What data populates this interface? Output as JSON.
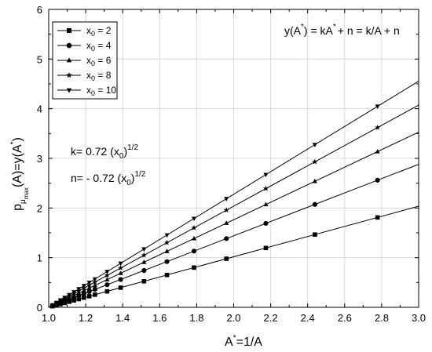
{
  "chart_data": {
    "type": "line",
    "x_axis": {
      "label_main": "A",
      "label_sup": "*",
      "label_rest": "=1/A",
      "range": [
        1.0,
        3.0
      ],
      "ticks": [
        1.0,
        1.2,
        1.4,
        1.6,
        1.8,
        2.0,
        2.2,
        2.4,
        2.6,
        2.8,
        3.0
      ],
      "tick_labels": [
        "1.0",
        "1.2",
        "1.4",
        "1.6",
        "1.8",
        "2.0",
        "2.2",
        "2.4",
        "2.6",
        "2.8",
        "3.0"
      ]
    },
    "y_axis": {
      "label_p": "p",
      "label_mu": "μ",
      "label_max": "max",
      "label_rest": "(A)=y(A",
      "label_star": "*",
      "label_close": ")",
      "range": [
        0,
        6
      ],
      "ticks": [
        0,
        1,
        2,
        3,
        4,
        5,
        6
      ],
      "tick_labels": [
        "0",
        "1",
        "2",
        "3",
        "4",
        "5",
        "6"
      ]
    },
    "grid": true,
    "legend_position": "top-left",
    "equation": {
      "p1": "y(A",
      "s1": "*",
      "p2": ") = kA",
      "s2": "*",
      "p3": "+ n = k/A + n"
    },
    "k_annotation": {
      "text": "k= 0.72 (x",
      "sub": "0",
      "close": ")",
      "sup": "1/2"
    },
    "n_annotation": {
      "text": "n= - 0.72 (x",
      "sub": "0",
      "close": ")",
      "sup": "1/2"
    },
    "marker_x": [
      1.0,
      1.0204,
      1.0417,
      1.0638,
      1.087,
      1.1111,
      1.1364,
      1.1628,
      1.1905,
      1.2195,
      1.25,
      1.3158,
      1.3889,
      1.5152,
      1.6393,
      1.7857,
      1.9608,
      2.1739,
      2.439,
      2.7778,
      3.0
    ],
    "series": [
      {
        "name_prefix": "x",
        "name_sub": "0",
        "name_value": " = 2",
        "marker": "square",
        "slope": 1.01823,
        "intercept": -1.01823
      },
      {
        "name_prefix": "x",
        "name_sub": "0",
        "name_value": " = 4",
        "marker": "circle",
        "slope": 1.44,
        "intercept": -1.44
      },
      {
        "name_prefix": "x",
        "name_sub": "0",
        "name_value": " = 6",
        "marker": "triangle-up",
        "slope": 1.76363,
        "intercept": -1.76363
      },
      {
        "name_prefix": "x",
        "name_sub": "0",
        "name_value": " = 8",
        "marker": "star",
        "slope": 2.03647,
        "intercept": -2.03647
      },
      {
        "name_prefix": "x",
        "name_sub": "0",
        "name_value": " = 10",
        "marker": "triangle-down",
        "slope": 2.27684,
        "intercept": -2.27684
      }
    ]
  }
}
